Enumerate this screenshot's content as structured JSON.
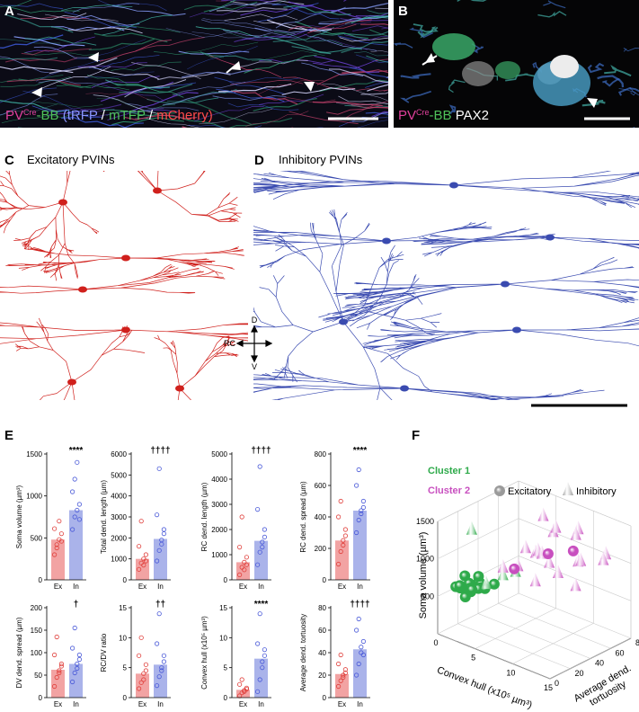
{
  "panels": {
    "a": {
      "label": "A",
      "caption": [
        {
          "text": "PV",
          "color": "#e0409c"
        },
        {
          "text": "Cre",
          "color": "#e0409c",
          "sup": true
        },
        {
          "text": "-BB",
          "color": "#4fc25a"
        },
        {
          "text": " (tRFP",
          "color": "#8a96ff"
        },
        {
          "text": " / ",
          "color": "#ffffff"
        },
        {
          "text": "mTFP",
          "color": "#4fc25a"
        },
        {
          "text": " / ",
          "color": "#ffffff"
        },
        {
          "text": "mCherry)",
          "color": "#ff4a4a"
        }
      ]
    },
    "b": {
      "label": "B",
      "caption": [
        {
          "text": "PV",
          "color": "#e0409c"
        },
        {
          "text": "Cre",
          "color": "#e0409c",
          "sup": true
        },
        {
          "text": "-BB",
          "color": "#4fc25a"
        },
        {
          "text": " PAX2",
          "color": "#ffffff"
        }
      ]
    },
    "c": {
      "label": "C",
      "title": "Excitatory PVINs",
      "color": "#d0201c"
    },
    "d": {
      "label": "D",
      "title": "Inhibitory PVINs",
      "color": "#3a4bb0"
    },
    "e": {
      "label": "E"
    },
    "f": {
      "label": "F"
    }
  },
  "compass": {
    "up": "D",
    "down": "V",
    "left": "RC"
  },
  "chart_data": [
    {
      "type": "bar",
      "ylabel": "Soma volume (µm³)",
      "categories": [
        "Ex",
        "In"
      ],
      "values": [
        480,
        830
      ],
      "points": [
        [
          300,
          420,
          480,
          550,
          610,
          380,
          700,
          460
        ],
        [
          600,
          750,
          830,
          900,
          1050,
          1200,
          1400,
          720
        ]
      ],
      "colors": [
        "#f2a3a3",
        "#aab3ea"
      ],
      "point_colors": [
        "#e0403c",
        "#4a5ad8"
      ],
      "ylim": [
        0,
        1500
      ],
      "yticks": [
        0,
        500,
        1000,
        1500
      ],
      "annotation": "****"
    },
    {
      "type": "bar",
      "ylabel": "Total dend. length (µm)",
      "categories": [
        "Ex",
        "In"
      ],
      "values": [
        1000,
        1950
      ],
      "points": [
        [
          500,
          800,
          1000,
          1200,
          1600,
          2800,
          700,
          900
        ],
        [
          900,
          1400,
          1900,
          2400,
          3100,
          5300,
          1700,
          2200
        ]
      ],
      "colors": [
        "#f2a3a3",
        "#aab3ea"
      ],
      "point_colors": [
        "#e0403c",
        "#4a5ad8"
      ],
      "ylim": [
        0,
        6000
      ],
      "yticks": [
        0,
        1000,
        2000,
        3000,
        4000,
        5000,
        6000
      ],
      "annotation": "††††"
    },
    {
      "type": "bar",
      "ylabel": "RC dend. length (µm)",
      "categories": [
        "Ex",
        "In"
      ],
      "values": [
        700,
        1550
      ],
      "points": [
        [
          200,
          500,
          700,
          900,
          1300,
          2500,
          400,
          600
        ],
        [
          600,
          1100,
          1500,
          2000,
          2800,
          4500,
          1300,
          1700
        ]
      ],
      "colors": [
        "#f2a3a3",
        "#aab3ea"
      ],
      "point_colors": [
        "#e0403c",
        "#4a5ad8"
      ],
      "ylim": [
        0,
        5000
      ],
      "yticks": [
        0,
        1000,
        2000,
        3000,
        4000,
        5000
      ],
      "annotation": "††††"
    },
    {
      "type": "bar",
      "ylabel": "RC dend. spread (µm)",
      "categories": [
        "Ex",
        "In"
      ],
      "values": [
        250,
        440
      ],
      "points": [
        [
          100,
          180,
          250,
          320,
          400,
          500,
          220,
          280
        ],
        [
          300,
          380,
          440,
          500,
          600,
          700,
          420,
          460
        ]
      ],
      "colors": [
        "#f2a3a3",
        "#aab3ea"
      ],
      "point_colors": [
        "#e0403c",
        "#4a5ad8"
      ],
      "ylim": [
        0,
        800
      ],
      "yticks": [
        0,
        200,
        400,
        600,
        800
      ],
      "annotation": "****"
    },
    {
      "type": "bar",
      "ylabel": "DV dend. spread (µm)",
      "categories": [
        "Ex",
        "In"
      ],
      "values": [
        62,
        75
      ],
      "points": [
        [
          25,
          45,
          60,
          75,
          95,
          135,
          55,
          70
        ],
        [
          35,
          55,
          75,
          95,
          110,
          155,
          65,
          85
        ]
      ],
      "colors": [
        "#f2a3a3",
        "#aab3ea"
      ],
      "point_colors": [
        "#e0403c",
        "#4a5ad8"
      ],
      "ylim": [
        0,
        200
      ],
      "yticks": [
        0,
        50,
        100,
        150,
        200
      ],
      "annotation": "†"
    },
    {
      "type": "bar",
      "ylabel": "RC/DV ratio",
      "categories": [
        "Ex",
        "In"
      ],
      "values": [
        4,
        5.5
      ],
      "points": [
        [
          1.5,
          2.5,
          4,
          5.5,
          7,
          10,
          3,
          4.5
        ],
        [
          2,
          3.5,
          5,
          7,
          9,
          14,
          4.5,
          6
        ]
      ],
      "colors": [
        "#f2a3a3",
        "#aab3ea"
      ],
      "point_colors": [
        "#e0403c",
        "#4a5ad8"
      ],
      "ylim": [
        0,
        15
      ],
      "yticks": [
        0,
        5,
        10,
        15
      ],
      "annotation": "††"
    },
    {
      "type": "bar",
      "ylabel": "Convex hull (x10⁵ µm³)",
      "categories": [
        "Ex",
        "In"
      ],
      "values": [
        1.3,
        6.5
      ],
      "points": [
        [
          0.3,
          0.8,
          1.2,
          1.6,
          2.2,
          3,
          1,
          1.4
        ],
        [
          1,
          3,
          5,
          7,
          9,
          14,
          6,
          8
        ]
      ],
      "colors": [
        "#f2a3a3",
        "#aab3ea"
      ],
      "point_colors": [
        "#e0403c",
        "#4a5ad8"
      ],
      "ylim": [
        0,
        15
      ],
      "yticks": [
        0,
        5,
        10,
        15
      ],
      "annotation": "****"
    },
    {
      "type": "bar",
      "ylabel": "Average dend. tortuosity",
      "categories": [
        "Ex",
        "In"
      ],
      "values": [
        21,
        43
      ],
      "points": [
        [
          10,
          15,
          20,
          25,
          30,
          38,
          18,
          22
        ],
        [
          20,
          30,
          40,
          50,
          60,
          70,
          45,
          38
        ]
      ],
      "colors": [
        "#f2a3a3",
        "#aab3ea"
      ],
      "point_colors": [
        "#e0403c",
        "#4a5ad8"
      ],
      "ylim": [
        0,
        80
      ],
      "yticks": [
        0,
        20,
        40,
        60,
        80
      ],
      "annotation": "††††"
    },
    {
      "type": "scatter3d",
      "xlabel": "Convex hull (x10⁵ µm³)",
      "ylabel": [
        "Average dend.",
        "tortuosity"
      ],
      "zlabel": "Soma volume (µm³)",
      "xlim": [
        0,
        15
      ],
      "ylim": [
        0,
        80
      ],
      "zlim": [
        0,
        1500
      ],
      "xticks": [
        0,
        5,
        10,
        15
      ],
      "yticks": [
        0,
        20,
        40,
        60,
        80
      ],
      "zticks": [
        500,
        1000,
        1500
      ],
      "grid": true,
      "clusters": [
        {
          "name": "Cluster 1",
          "color": "#2eaa4a"
        },
        {
          "name": "Cluster 2",
          "color": "#c84fbf"
        }
      ],
      "cell_types": [
        {
          "name": "Excitatory",
          "marker": "sphere"
        },
        {
          "name": "Inhibitory",
          "marker": "cone"
        }
      ],
      "legend_color": "#9a9a9a",
      "points": {
        "x": [
          1,
          1.5,
          2,
          1,
          2.5,
          0.8,
          1.2,
          2,
          3,
          1.8,
          2.2,
          1.4,
          0.6,
          2.8,
          3.5,
          1.6,
          2.4,
          0.5,
          4,
          5,
          3.5,
          6,
          8,
          10,
          9,
          12,
          7,
          11,
          6,
          8,
          13,
          10,
          5,
          9,
          12,
          7,
          4,
          11,
          9.5,
          6.5,
          8,
          10,
          5.5
        ],
        "y": [
          15,
          20,
          18,
          25,
          22,
          12,
          18,
          28,
          20,
          14,
          24,
          30,
          20,
          26,
          30,
          10,
          16,
          30,
          35,
          40,
          22,
          60,
          55,
          65,
          70,
          50,
          45,
          60,
          35,
          40,
          70,
          45,
          50,
          30,
          75,
          65,
          35,
          55,
          40,
          55,
          50,
          60,
          35
        ],
        "z": [
          550,
          600,
          520,
          480,
          650,
          580,
          700,
          560,
          600,
          470,
          530,
          620,
          500,
          540,
          600,
          640,
          580,
          1200,
          700,
          750,
          650,
          1400,
          1300,
          1350,
          1200,
          1100,
          1050,
          1000,
          900,
          1150,
          1100,
          900,
          1000,
          850,
          950,
          1250,
          800,
          700,
          1050,
          950,
          1050,
          1100,
          850
        ],
        "cluster": [
          0,
          0,
          0,
          0,
          0,
          0,
          0,
          0,
          0,
          0,
          0,
          0,
          0,
          0,
          0,
          0,
          0,
          0,
          0,
          0,
          0,
          1,
          1,
          1,
          1,
          1,
          1,
          1,
          1,
          1,
          1,
          1,
          1,
          1,
          1,
          1,
          1,
          1,
          1,
          1,
          1,
          1,
          1
        ],
        "cell_type": [
          0,
          0,
          0,
          0,
          0,
          0,
          0,
          0,
          0,
          0,
          0,
          0,
          0,
          0,
          0,
          0,
          0,
          1,
          1,
          1,
          1,
          1,
          1,
          1,
          1,
          1,
          1,
          1,
          1,
          1,
          1,
          1,
          1,
          1,
          1,
          1,
          1,
          1,
          1,
          1,
          0,
          0,
          0
        ]
      }
    }
  ]
}
